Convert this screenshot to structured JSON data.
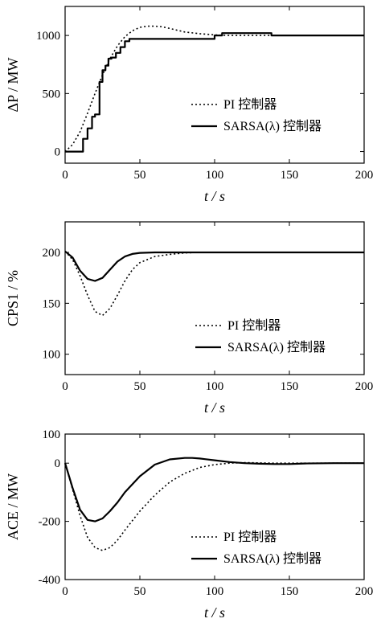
{
  "chart_data": [
    {
      "type": "line",
      "ylabel": "ΔP / MW",
      "xlabel": "t / s",
      "xlim": [
        0,
        200
      ],
      "ylim": [
        -100,
        1250
      ],
      "xticks": [
        "0",
        "50",
        "100",
        "150",
        "200"
      ],
      "yticks": [
        "0",
        "500",
        "1000"
      ],
      "legend_position": "lower-right",
      "series": [
        {
          "name": "PI 控制器",
          "style": "dotted",
          "x": [
            0,
            5,
            10,
            15,
            20,
            25,
            30,
            35,
            40,
            45,
            50,
            55,
            60,
            65,
            70,
            75,
            80,
            90,
            100,
            110,
            120,
            140,
            160,
            180,
            200
          ],
          "y": [
            0,
            60,
            170,
            330,
            500,
            660,
            800,
            910,
            990,
            1040,
            1070,
            1080,
            1080,
            1075,
            1060,
            1045,
            1030,
            1015,
            1005,
            1000,
            1000,
            1000,
            1000,
            1000,
            1000
          ]
        },
        {
          "name": "SARSA(λ) 控制器",
          "style": "solid",
          "x": [
            0,
            12,
            12,
            15,
            15,
            18,
            18,
            20,
            20,
            23,
            23,
            25,
            25,
            27,
            27,
            29,
            29,
            31,
            31,
            34,
            34,
            37,
            37,
            40,
            40,
            43,
            43,
            100,
            100,
            105,
            105,
            138,
            138,
            200
          ],
          "y": [
            0,
            0,
            110,
            110,
            200,
            200,
            300,
            300,
            320,
            320,
            600,
            600,
            700,
            700,
            740,
            740,
            800,
            800,
            810,
            810,
            850,
            850,
            900,
            900,
            950,
            950,
            970,
            970,
            1000,
            1000,
            1020,
            1020,
            1000,
            1000
          ]
        }
      ]
    },
    {
      "type": "line",
      "ylabel": "CPS1 / %",
      "xlabel": "t / s",
      "xlim": [
        0,
        200
      ],
      "ylim": [
        80,
        230
      ],
      "xticks": [
        "0",
        "50",
        "100",
        "150",
        "200"
      ],
      "yticks": [
        "100",
        "150",
        "200"
      ],
      "legend_position": "lower-right",
      "series": [
        {
          "name": "PI 控制器",
          "style": "dotted",
          "x": [
            0,
            5,
            10,
            15,
            20,
            25,
            30,
            35,
            40,
            45,
            50,
            60,
            70,
            80,
            90,
            100,
            120,
            150,
            200
          ],
          "y": [
            201,
            193,
            177,
            158,
            142,
            138,
            145,
            158,
            172,
            183,
            190,
            196,
            198,
            199.5,
            200,
            200,
            200,
            200,
            200
          ]
        },
        {
          "name": "SARSA(λ) 控制器",
          "style": "solid",
          "x": [
            0,
            5,
            10,
            15,
            20,
            25,
            30,
            35,
            40,
            45,
            50,
            60,
            70,
            80,
            100,
            150,
            200
          ],
          "y": [
            201,
            195,
            182,
            174,
            172,
            175,
            183,
            191,
            196,
            198.5,
            199.5,
            200,
            200,
            200,
            200,
            200,
            200
          ]
        }
      ]
    },
    {
      "type": "line",
      "ylabel": "ACE / MW",
      "xlabel": "t / s",
      "xlim": [
        0,
        200
      ],
      "ylim": [
        -400,
        100
      ],
      "xticks": [
        "0",
        "50",
        "100",
        "150",
        "200"
      ],
      "yticks": [
        "-400",
        "-200",
        "0",
        "100"
      ],
      "legend_position": "lower-right",
      "series": [
        {
          "name": "PI 控制器",
          "style": "dotted",
          "x": [
            0,
            5,
            10,
            15,
            20,
            25,
            30,
            35,
            40,
            50,
            60,
            70,
            80,
            90,
            100,
            110,
            120,
            140,
            160,
            180,
            200
          ],
          "y": [
            0,
            -90,
            -180,
            -255,
            -290,
            -300,
            -290,
            -265,
            -230,
            -165,
            -110,
            -65,
            -35,
            -15,
            -5,
            0,
            2,
            0,
            0,
            0,
            0
          ]
        },
        {
          "name": "SARSA(λ) 控制器",
          "style": "solid",
          "x": [
            0,
            5,
            10,
            15,
            20,
            25,
            30,
            35,
            40,
            50,
            60,
            70,
            80,
            85,
            90,
            100,
            110,
            120,
            130,
            140,
            150,
            160,
            180,
            200
          ],
          "y": [
            0,
            -85,
            -160,
            -195,
            -200,
            -190,
            -165,
            -135,
            -100,
            -45,
            -5,
            13,
            18,
            18,
            16,
            10,
            4,
            0,
            -2,
            -3,
            -3,
            -1,
            0,
            0
          ]
        }
      ]
    }
  ]
}
